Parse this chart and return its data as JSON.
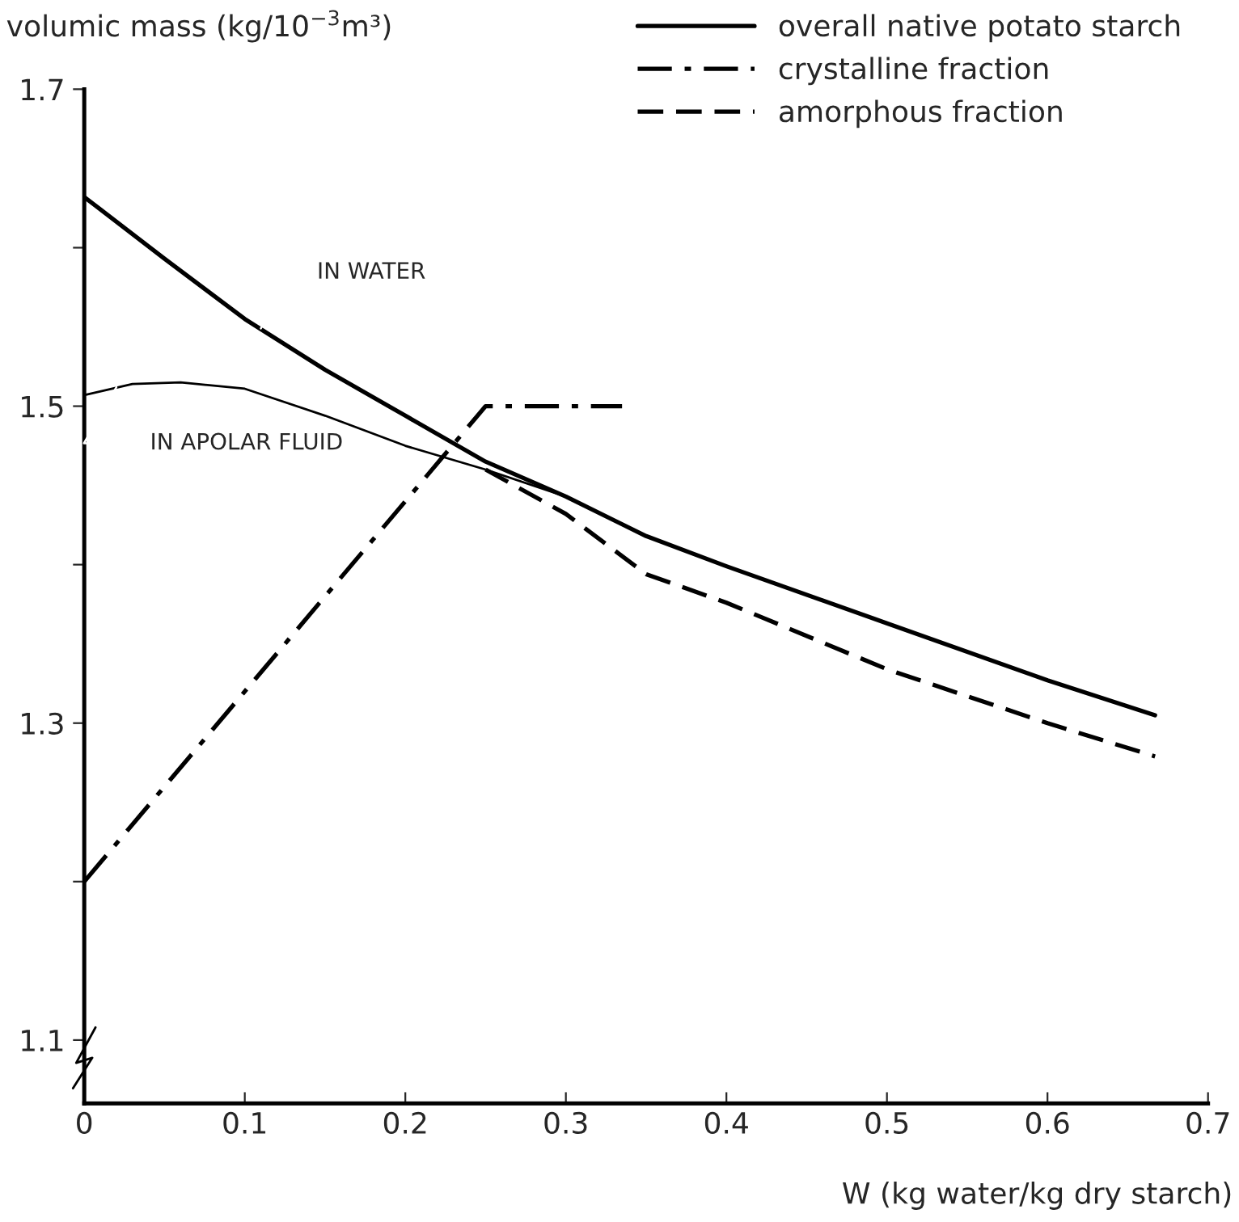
{
  "chart_data": {
    "type": "line",
    "ylabel": "volumic mass (kg/10$^{−3}$m³)",
    "xlabel": "W (kg water/kg dry starch)",
    "series": [
      {
        "name": "overall native potato starch",
        "color": "#000000",
        "line_style": "solid",
        "x": [
          0,
          0.05,
          0.1,
          0.15,
          0.2,
          0.25,
          0.3,
          0.35,
          0.4,
          0.5,
          0.6,
          0.667
        ],
        "values": [
          1.632,
          1.593,
          1.555,
          1.523,
          1.494,
          1.465,
          1.443,
          1.418,
          1.399,
          1.363,
          1.327,
          1.305
        ]
      },
      {
        "color": "#000000",
        "line_style": "solid",
        "x": [
          0,
          0.03,
          0.06,
          0.1,
          0.15,
          0.2,
          0.25,
          0.3
        ],
        "values": [
          1.507,
          1.514,
          1.515,
          1.511,
          1.494,
          1.475,
          1.46,
          1.443
        ]
      },
      {
        "name": "crystalline fraction",
        "color": "#000000",
        "line_style": "dashdot",
        "x": [
          0,
          0.25,
          0.335
        ],
        "values": [
          1.2,
          1.5,
          1.5
        ]
      },
      {
        "name": "amorphous fraction",
        "color": "#000000",
        "line_style": "dashed",
        "x": [
          0.25,
          0.3,
          0.35,
          0.4,
          0.5,
          0.6,
          0.667
        ],
        "values": [
          1.46,
          1.432,
          1.394,
          1.376,
          1.334,
          1.3,
          1.279
        ]
      }
    ],
    "annotations": [
      {
        "text": "IN WATER",
        "x": 0.11,
        "y": 1.549
      },
      {
        "text": "IN APOLAR FLUID",
        "x": 0.02,
        "y": 1.512
      }
    ],
    "xlim": [
      0,
      0.7
    ],
    "xticks": [
      0,
      0.1,
      0.2,
      0.3,
      0.4,
      0.5,
      0.6,
      0.7
    ],
    "ylim": [
      1.06,
      1.7
    ],
    "yticks": [
      1.1,
      {
        "value": 1.2,
        "label": null
      },
      1.3,
      {
        "value": 1.4,
        "label": null
      },
      1.5,
      {
        "value": 1.6,
        "label": null
      },
      1.7
    ],
    "legend": "top right",
    "grid": false
  }
}
